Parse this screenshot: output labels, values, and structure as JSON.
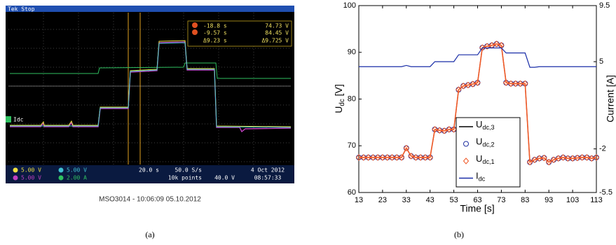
{
  "scope": {
    "status": "Tek Stop",
    "ch_marker": "Idc",
    "cursor_a_time": "-18.8 s",
    "cursor_a_value": "74.73 V",
    "cursor_b_time": "-9.57 s",
    "cursor_b_value": "84.45 V",
    "delta_time": "Δ9.23 s",
    "delta_value": "Δ9.725 V",
    "ch1_scale": "5.00 V",
    "ch2_scale": "5.00 V",
    "ch3_scale": "5.00 V",
    "ch4_scale": "2.00 A",
    "timebase": "20.0 s",
    "sample_rate": "50.0 S/s",
    "record_length": "10k points",
    "trigger_level": "40.0 V",
    "date": "4 Oct 2012",
    "time": "08:57:33",
    "footer": "MSO3014 - 10:06:09   05.10.2012",
    "caption": "(a)"
  },
  "chart_data": {
    "type": "line",
    "caption": "(b)",
    "xlabel": "Time [s]",
    "ylabel": "Udc [V]",
    "y2label": "Current [A]",
    "xlim": [
      13,
      113
    ],
    "xticks": [
      13,
      23,
      33,
      43,
      53,
      63,
      73,
      83,
      93,
      103,
      113
    ],
    "ylim": [
      60,
      100
    ],
    "yticks": [
      60,
      70,
      80,
      90,
      100
    ],
    "y2lim": [
      -5.5,
      9.5
    ],
    "y2ticks": [
      -5.5,
      -2,
      5,
      9.5
    ],
    "x": [
      13,
      15,
      17,
      19,
      21,
      23,
      25,
      27,
      29,
      31,
      33,
      35,
      37,
      39,
      41,
      43,
      45,
      47,
      49,
      51,
      53,
      55,
      57,
      59,
      61,
      63,
      65,
      67,
      69,
      71,
      73,
      75,
      77,
      79,
      81,
      83,
      85,
      87,
      89,
      91,
      93,
      95,
      97,
      99,
      101,
      103,
      105,
      107,
      109,
      111,
      113
    ],
    "series": [
      {
        "name": "Udc,3",
        "color": "#000000",
        "line": true,
        "marker": null,
        "values": [
          67.5,
          67.5,
          67.5,
          67.5,
          67.5,
          67.5,
          67.5,
          67.5,
          67.5,
          67.5,
          69.5,
          67.8,
          67.5,
          67.5,
          67.5,
          67.5,
          73.5,
          73.3,
          73.2,
          73.5,
          73.5,
          82,
          82.8,
          83,
          83.2,
          83.5,
          91,
          91.3,
          91.5,
          91.8,
          91.5,
          83.5,
          83.3,
          83.3,
          83.3,
          83.3,
          66.5,
          67,
          67.3,
          67.4,
          66.5,
          67,
          67.3,
          67.5,
          67.3,
          67.3,
          67.4,
          67.5,
          67.5,
          67.3,
          67.5
        ]
      },
      {
        "name": "Udc,2",
        "color": "#2030a0",
        "line": false,
        "marker": "circle",
        "values": [
          67.5,
          67.5,
          67.5,
          67.5,
          67.5,
          67.5,
          67.5,
          67.5,
          67.5,
          67.5,
          69.5,
          67.8,
          67.5,
          67.5,
          67.5,
          67.5,
          73.5,
          73.3,
          73.2,
          73.5,
          73.5,
          82,
          82.8,
          83,
          83.2,
          83.5,
          91,
          91.3,
          91.5,
          91.8,
          91.5,
          83.5,
          83.3,
          83.3,
          83.3,
          83.3,
          66.5,
          67,
          67.3,
          67.4,
          66.5,
          67,
          67.3,
          67.5,
          67.3,
          67.3,
          67.4,
          67.5,
          67.5,
          67.3,
          67.5
        ]
      },
      {
        "name": "Udc,1",
        "color": "#f05a28",
        "line": true,
        "marker": "diamond",
        "values": [
          67.5,
          67.5,
          67.5,
          67.5,
          67.5,
          67.5,
          67.5,
          67.5,
          67.5,
          67.5,
          69.5,
          67.8,
          67.5,
          67.5,
          67.5,
          67.5,
          73.5,
          73.3,
          73.2,
          73.5,
          73.5,
          82,
          82.8,
          83,
          83.2,
          83.5,
          91,
          91.3,
          91.5,
          91.8,
          91.5,
          83.5,
          83.3,
          83.3,
          83.3,
          83.3,
          66.5,
          67,
          67.3,
          67.4,
          66.5,
          67,
          67.3,
          67.5,
          67.3,
          67.3,
          67.4,
          67.5,
          67.5,
          67.3,
          67.5
        ]
      },
      {
        "name": "Idc",
        "color": "#1a2ea8",
        "line": true,
        "marker": null,
        "axis": "y2",
        "values": [
          4.6,
          4.6,
          4.6,
          4.6,
          4.6,
          4.6,
          4.6,
          4.6,
          4.6,
          4.6,
          4.7,
          4.6,
          4.6,
          4.6,
          4.6,
          4.6,
          5.0,
          5.0,
          5.0,
          5.0,
          5.0,
          5.55,
          5.55,
          5.55,
          5.55,
          5.55,
          6.1,
          6.1,
          6.1,
          6.1,
          6.1,
          5.7,
          5.7,
          5.7,
          5.7,
          5.7,
          4.55,
          4.55,
          4.6,
          4.6,
          4.6,
          4.6,
          4.6,
          4.6,
          4.6,
          4.6,
          4.6,
          4.6,
          4.6,
          4.6,
          4.6
        ]
      }
    ]
  }
}
